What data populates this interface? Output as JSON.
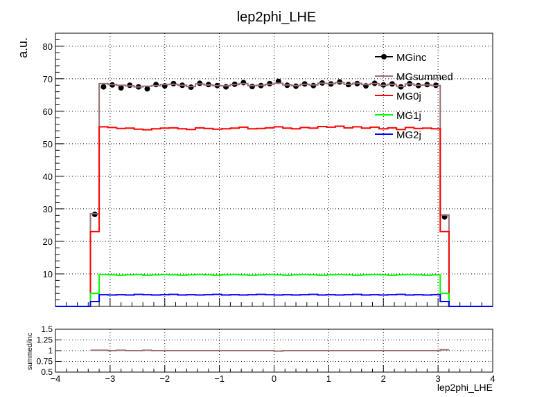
{
  "chart_data": {
    "type": "line",
    "title": "lep2phi_LHE",
    "xlabel": "lep2phi_LHE",
    "ylabel": "a.u.",
    "xlim": [
      -4,
      4
    ],
    "ylim": [
      0,
      84
    ],
    "bin_edges": [
      -4.0,
      -3.84,
      -3.68,
      -3.52,
      -3.36,
      -3.2,
      -3.04,
      -2.88,
      -2.72,
      -2.56,
      -2.4,
      -2.24,
      -2.08,
      -1.92,
      -1.76,
      -1.6,
      -1.44,
      -1.28,
      -1.12,
      -0.96,
      -0.8,
      -0.64,
      -0.48,
      -0.32,
      -0.16,
      0.0,
      0.16,
      0.32,
      0.48,
      0.64,
      0.8,
      0.96,
      1.12,
      1.28,
      1.44,
      1.6,
      1.76,
      1.92,
      2.08,
      2.24,
      2.4,
      2.56,
      2.72,
      2.88,
      3.04,
      3.2,
      3.36,
      3.52,
      3.68,
      3.84,
      4.0
    ],
    "x_ticks": [
      -4,
      -3,
      -2,
      -1,
      0,
      1,
      2,
      3,
      4
    ],
    "x_tick_labels": [
      "−4",
      "−3",
      "−2",
      "−1",
      "0",
      "1",
      "2",
      "3",
      "4"
    ],
    "y_ticks": [
      10,
      20,
      30,
      40,
      50,
      60,
      70,
      80
    ],
    "grid": true,
    "legend_placement": "top-right",
    "series": [
      {
        "name": "MGinc",
        "style": "markers",
        "color": "#000000",
        "values": [
          0,
          0,
          0,
          0,
          28.3,
          67.5,
          68.1,
          67.2,
          68.0,
          67.5,
          66.9,
          68.2,
          67.8,
          68.5,
          68.0,
          67.4,
          68.6,
          68.2,
          67.9,
          67.5,
          68.3,
          68.8,
          67.6,
          67.9,
          68.5,
          69.2,
          68.0,
          67.7,
          68.4,
          67.9,
          68.7,
          68.4,
          69.0,
          68.2,
          68.5,
          67.8,
          68.6,
          68.1,
          68.4,
          67.5,
          68.5,
          67.9,
          68.2,
          68.0,
          27.5,
          0,
          0,
          0,
          0,
          0
        ]
      },
      {
        "name": "MGsummed",
        "style": "step",
        "color": "#9a7070",
        "values": [
          0,
          0,
          0,
          0,
          28.5,
          68.5,
          68.2,
          68.0,
          67.8,
          67.5,
          67.7,
          67.9,
          68.2,
          68.3,
          68.0,
          67.6,
          68.4,
          68.1,
          67.9,
          67.8,
          68.2,
          68.5,
          67.9,
          68.0,
          68.3,
          68.6,
          68.1,
          67.9,
          68.3,
          68.1,
          68.6,
          68.5,
          68.8,
          68.3,
          68.6,
          68.2,
          68.5,
          68.0,
          68.3,
          67.6,
          68.4,
          68.0,
          68.1,
          67.9,
          28.1,
          0,
          0,
          0,
          0,
          0
        ]
      },
      {
        "name": "MG0j",
        "style": "step",
        "color": "#ff0000",
        "values": [
          0,
          0,
          0,
          0,
          23.0,
          55.2,
          55.0,
          54.7,
          54.8,
          54.5,
          54.3,
          54.6,
          54.8,
          54.9,
          54.6,
          54.4,
          54.9,
          54.7,
          54.5,
          54.6,
          54.8,
          55.1,
          54.6,
          54.7,
          54.9,
          55.2,
          54.8,
          54.6,
          55.0,
          54.8,
          55.3,
          55.1,
          55.4,
          54.9,
          55.2,
          54.8,
          55.1,
          54.6,
          54.9,
          54.4,
          55.0,
          54.7,
          54.8,
          54.6,
          23.0,
          0,
          0,
          0,
          0,
          0
        ]
      },
      {
        "name": "MG1j",
        "style": "step",
        "color": "#00ff00",
        "values": [
          0,
          0,
          0,
          0,
          4.0,
          9.8,
          9.7,
          9.6,
          9.7,
          9.8,
          9.6,
          9.7,
          9.8,
          9.7,
          9.6,
          9.7,
          9.8,
          9.7,
          9.6,
          9.7,
          9.8,
          9.7,
          9.6,
          9.7,
          9.8,
          9.7,
          9.6,
          9.7,
          9.8,
          9.7,
          9.6,
          9.7,
          9.8,
          9.7,
          9.6,
          9.7,
          9.8,
          9.7,
          9.6,
          9.7,
          9.8,
          9.7,
          9.6,
          9.7,
          4.0,
          0,
          0,
          0,
          0,
          0
        ]
      },
      {
        "name": "MG2j",
        "style": "step",
        "color": "#0000ff",
        "values": [
          0,
          0,
          0,
          0,
          1.5,
          3.6,
          3.5,
          3.6,
          3.5,
          3.7,
          3.6,
          3.5,
          3.6,
          3.7,
          3.5,
          3.6,
          3.5,
          3.6,
          3.7,
          3.5,
          3.6,
          3.5,
          3.6,
          3.7,
          3.6,
          3.5,
          3.6,
          3.5,
          3.6,
          3.7,
          3.5,
          3.6,
          3.5,
          3.6,
          3.7,
          3.5,
          3.6,
          3.5,
          3.6,
          3.7,
          3.5,
          3.6,
          3.5,
          3.6,
          1.5,
          0,
          0,
          0,
          0,
          0
        ]
      }
    ],
    "ratio": {
      "ylabel": "summed/inc",
      "ylim": [
        0.5,
        1.5
      ],
      "y_ticks": [
        0.5,
        1,
        1.5
      ],
      "y_tick_labels": [
        "0.5",
        "1",
        "1.5"
      ],
      "minor_tick_labels": [
        {
          "value": 1.25,
          "label": "1.25"
        },
        {
          "value": 0.75,
          "label": "0.75"
        }
      ],
      "color": "#9a7070",
      "values": [
        null,
        null,
        null,
        null,
        1.01,
        1.01,
        1.0,
        1.01,
        1.0,
        1.0,
        1.01,
        1.0,
        1.0,
        1.0,
        1.0,
        1.0,
        1.0,
        1.0,
        1.0,
        1.0,
        1.0,
        1.0,
        1.0,
        1.0,
        1.0,
        0.99,
        1.0,
        1.0,
        1.0,
        1.0,
        1.0,
        1.0,
        1.0,
        1.0,
        1.0,
        1.0,
        1.0,
        1.0,
        1.0,
        1.0,
        1.0,
        1.0,
        1.0,
        1.0,
        1.02,
        null,
        null,
        null,
        null,
        null
      ]
    }
  }
}
